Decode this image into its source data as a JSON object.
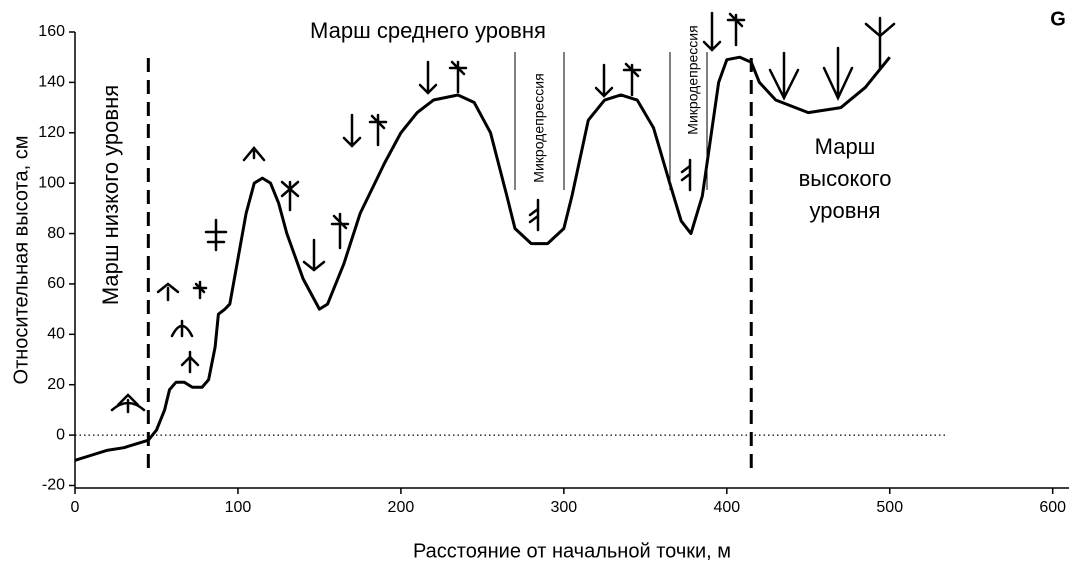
{
  "chart_data": {
    "type": "line",
    "xlabel": "Расстояние от начальной точки, м",
    "ylabel": "Относительная высота, см",
    "annotations": [
      "Марш среднего уровня",
      "Марш низкого уровня",
      "Марш",
      "высокого",
      "уровня",
      "Микродепрессия",
      "Микродепрессия",
      "G"
    ],
    "xlim": [
      0,
      610
    ],
    "ylim": [
      -21,
      160
    ],
    "xticks": [
      0,
      100,
      200,
      300,
      400,
      500,
      600
    ],
    "yticks": [
      -20,
      0,
      20,
      40,
      60,
      80,
      100,
      120,
      140,
      160
    ],
    "boundaries": [
      45,
      415
    ],
    "reference_line": 0,
    "series": [
      {
        "color": "#000000",
        "x": [
          0,
          10,
          20,
          30,
          40,
          45,
          50,
          55,
          58,
          62,
          67,
          72,
          78,
          82,
          86,
          88,
          92,
          95,
          100,
          105,
          110,
          115,
          120,
          125,
          130,
          140,
          150,
          155,
          165,
          175,
          190,
          200,
          210,
          220,
          235,
          245,
          255,
          265,
          270,
          280,
          290,
          300,
          305,
          315,
          325,
          335,
          345,
          355,
          365,
          372,
          378,
          385,
          395,
          400,
          408,
          415,
          420,
          430,
          450,
          470,
          485,
          500
        ],
        "values": [
          -10,
          -8,
          -6,
          -5,
          -3,
          -2,
          2,
          10,
          18,
          21,
          21,
          19,
          19,
          22,
          35,
          48,
          50,
          52,
          70,
          88,
          100,
          102,
          100,
          92,
          80,
          62,
          50,
          52,
          68,
          88,
          108,
          120,
          128,
          133,
          135,
          132,
          120,
          95,
          82,
          76,
          76,
          82,
          95,
          125,
          133,
          135,
          133,
          122,
          100,
          85,
          80,
          95,
          140,
          149,
          150,
          148,
          140,
          133,
          128,
          130,
          138,
          150
        ]
      }
    ]
  }
}
